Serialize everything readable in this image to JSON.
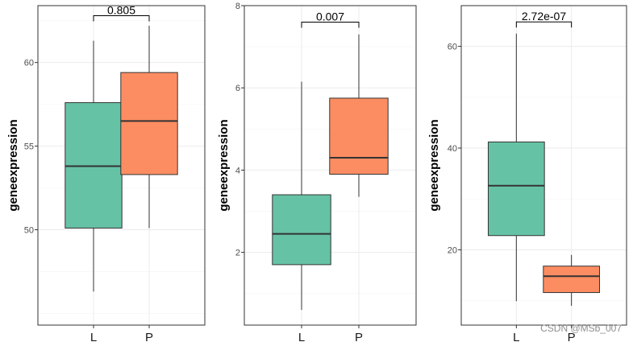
{
  "chart_data": [
    {
      "type": "boxplot",
      "ylabel": "geneexpression",
      "categories": [
        "L",
        "P"
      ],
      "colors": [
        "#66c2a5",
        "#fc8d62"
      ],
      "ylim": [
        44.3,
        63.4
      ],
      "yticks": [
        50,
        55,
        60
      ],
      "boxes": [
        {
          "group": "L",
          "min": 46.3,
          "q1": 50.1,
          "median": 53.8,
          "q3": 57.6,
          "max": 61.3
        },
        {
          "group": "P",
          "min": 50.1,
          "q1": 53.3,
          "median": 56.5,
          "q3": 59.4,
          "max": 62.2
        }
      ],
      "comparison": {
        "label": "0.805",
        "bracket_y": 62.8
      }
    },
    {
      "type": "boxplot",
      "ylabel": "geneexpression",
      "categories": [
        "L",
        "P"
      ],
      "colors": [
        "#66c2a5",
        "#fc8d62"
      ],
      "ylim": [
        0.23,
        8.0
      ],
      "yticks": [
        2,
        4,
        6,
        8
      ],
      "boxes": [
        {
          "group": "L",
          "min": 0.6,
          "q1": 1.7,
          "median": 2.45,
          "q3": 3.4,
          "max": 6.15
        },
        {
          "group": "P",
          "min": 3.35,
          "q1": 3.9,
          "median": 4.3,
          "q3": 5.75,
          "max": 7.3
        }
      ],
      "comparison": {
        "label": "0.007",
        "bracket_y": 7.6
      }
    },
    {
      "type": "boxplot",
      "ylabel": "geneexpression",
      "categories": [
        "L",
        "P"
      ],
      "colors": [
        "#66c2a5",
        "#fc8d62"
      ],
      "ylim": [
        5.2,
        68.0
      ],
      "yticks": [
        20,
        40,
        60
      ],
      "boxes": [
        {
          "group": "L",
          "min": 9.9,
          "q1": 22.8,
          "median": 32.6,
          "q3": 41.2,
          "max": 62.5
        },
        {
          "group": "P",
          "min": 9.0,
          "q1": 11.6,
          "median": 14.8,
          "q3": 16.8,
          "max": 19.0
        }
      ],
      "comparison": {
        "label": "2.72e-07",
        "bracket_y": 64.8
      }
    }
  ],
  "watermark": "CSDN @MSb_007"
}
